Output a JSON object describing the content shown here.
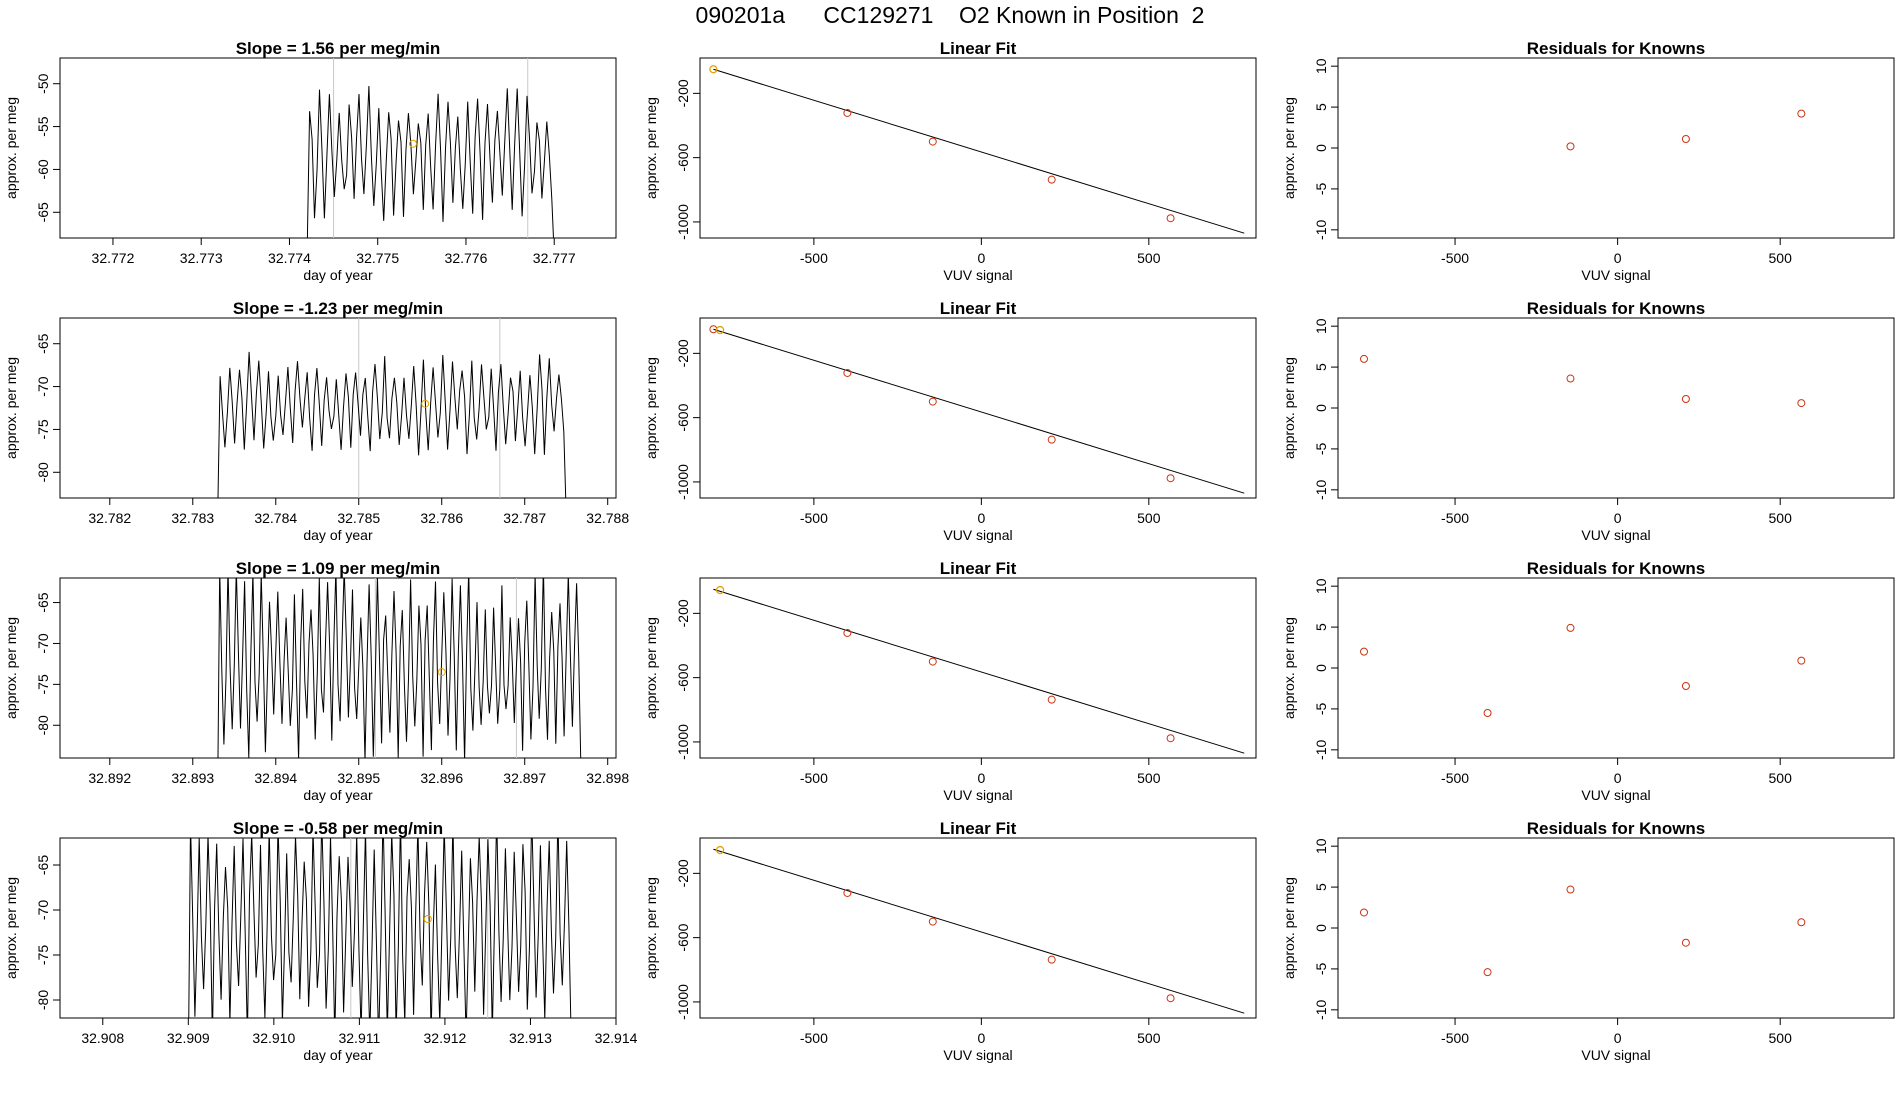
{
  "page": {
    "title": "090201a      CC129271    O2 Known in Position  2"
  },
  "chart_data": [
    {
      "type": "line",
      "panel": "timeseries",
      "row": 0,
      "title": "Slope =  1.56  per meg/min",
      "xlabel": "day of year",
      "ylabel": "approx. per meg",
      "xlim": [
        32.7714,
        32.7777
      ],
      "ylim": [
        -68,
        -47
      ],
      "xticks": [
        {
          "v": 32.772,
          "label": "32.772"
        },
        {
          "v": 32.773,
          "label": "32.773"
        },
        {
          "v": 32.774,
          "label": "32.774"
        },
        {
          "v": 32.775,
          "label": "32.775"
        },
        {
          "v": 32.776,
          "label": "32.776"
        },
        {
          "v": 32.777,
          "label": "32.777"
        }
      ],
      "yticks": [
        {
          "v": -65,
          "label": "-65"
        },
        {
          "v": -60,
          "label": "-60"
        },
        {
          "v": -55,
          "label": "-55"
        },
        {
          "v": -50,
          "label": "-50"
        }
      ],
      "vlines": [
        32.7745,
        32.7767
      ],
      "marker": {
        "x": 32.7754,
        "y": -57.0
      },
      "trace": {
        "x_start": 32.7742,
        "x_end": 32.777,
        "base": -58.5,
        "amp": 7.5,
        "periods": 25,
        "seed": 1,
        "floor": -70,
        "ceil": -40
      },
      "line_color": "#000000",
      "marker_color": "#E69F00"
    },
    {
      "type": "scatter",
      "panel": "linear-fit",
      "row": 0,
      "title": "Linear Fit",
      "xlabel": "VUV signal",
      "ylabel": "approx. per meg",
      "xlim": [
        -840,
        820
      ],
      "ylim": [
        -1100,
        20
      ],
      "xticks": [
        {
          "v": -500,
          "label": "-500"
        },
        {
          "v": 0,
          "label": "0"
        },
        {
          "v": 500,
          "label": "500"
        }
      ],
      "yticks": [
        {
          "v": -1000,
          "label": "-1000"
        },
        {
          "v": -600,
          "label": "-600"
        },
        {
          "v": -200,
          "label": "-200"
        }
      ],
      "x": [
        -400,
        -145,
        210,
        565
      ],
      "y": [
        -322,
        -500,
        -737,
        -977
      ],
      "highlight": {
        "x": -800,
        "y": -50
      },
      "fit_line": {
        "x0": -800,
        "y0": -50,
        "x1": 785,
        "y1": -1070
      },
      "line_color": "#000000",
      "point_color": "#CC3311",
      "highlight_color": "#E69F00"
    },
    {
      "type": "scatter",
      "panel": "residuals",
      "row": 0,
      "title": "Residuals for Knowns",
      "xlabel": "VUV signal",
      "ylabel": "approx. per meg",
      "xlim": [
        -860,
        850
      ],
      "ylim": [
        -11,
        11
      ],
      "xticks": [
        {
          "v": -500,
          "label": "-500"
        },
        {
          "v": 0,
          "label": "0"
        },
        {
          "v": 500,
          "label": "500"
        }
      ],
      "yticks": [
        {
          "v": -10,
          "label": "-10"
        },
        {
          "v": -5,
          "label": "-5"
        },
        {
          "v": 0,
          "label": "0"
        },
        {
          "v": 5,
          "label": "5"
        },
        {
          "v": 10,
          "label": "10"
        }
      ],
      "x": [
        -145,
        210,
        565
      ],
      "y": [
        0.2,
        1.1,
        4.2
      ],
      "point_color": "#CC3311"
    },
    {
      "type": "line",
      "panel": "timeseries",
      "row": 1,
      "title": "Slope =  -1.23  per meg/min",
      "xlabel": "day of year",
      "ylabel": "approx. per meg",
      "xlim": [
        32.7814,
        32.7881
      ],
      "ylim": [
        -83,
        -62
      ],
      "xticks": [
        {
          "v": 32.782,
          "label": "32.782"
        },
        {
          "v": 32.783,
          "label": "32.783"
        },
        {
          "v": 32.784,
          "label": "32.784"
        },
        {
          "v": 32.785,
          "label": "32.785"
        },
        {
          "v": 32.786,
          "label": "32.786"
        },
        {
          "v": 32.787,
          "label": "32.787"
        },
        {
          "v": 32.788,
          "label": "32.788"
        }
      ],
      "yticks": [
        {
          "v": -80,
          "label": "-80"
        },
        {
          "v": -75,
          "label": "-75"
        },
        {
          "v": -70,
          "label": "-70"
        },
        {
          "v": -65,
          "label": "-65"
        }
      ],
      "vlines": [
        32.785,
        32.7867
      ],
      "marker": {
        "x": 32.7858,
        "y": -72.0
      },
      "trace": {
        "x_start": 32.7833,
        "x_end": 32.7875,
        "base": -72.0,
        "amp": 5.5,
        "periods": 36,
        "seed": 2,
        "floor": -85,
        "ceil": -58
      },
      "line_color": "#000000",
      "marker_color": "#E69F00"
    },
    {
      "type": "scatter",
      "panel": "linear-fit",
      "row": 1,
      "title": "Linear Fit",
      "xlabel": "VUV signal",
      "ylabel": "approx. per meg",
      "xlim": [
        -840,
        820
      ],
      "ylim": [
        -1100,
        20
      ],
      "xticks": [
        {
          "v": -500,
          "label": "-500"
        },
        {
          "v": 0,
          "label": "0"
        },
        {
          "v": 500,
          "label": "500"
        }
      ],
      "yticks": [
        {
          "v": -1000,
          "label": "-1000"
        },
        {
          "v": -600,
          "label": "-600"
        },
        {
          "v": -200,
          "label": "-200"
        }
      ],
      "x": [
        -800,
        -400,
        -145,
        210,
        565
      ],
      "y": [
        -50,
        -322,
        -500,
        -737,
        -977
      ],
      "highlight": {
        "x": -780,
        "y": -55
      },
      "fit_line": {
        "x0": -800,
        "y0": -50,
        "x1": 785,
        "y1": -1070
      },
      "line_color": "#000000",
      "point_color": "#CC3311",
      "highlight_color": "#E69F00"
    },
    {
      "type": "scatter",
      "panel": "residuals",
      "row": 1,
      "title": "Residuals for Knowns",
      "xlabel": "VUV signal",
      "ylabel": "approx. per meg",
      "xlim": [
        -860,
        850
      ],
      "ylim": [
        -11,
        11
      ],
      "xticks": [
        {
          "v": -500,
          "label": "-500"
        },
        {
          "v": 0,
          "label": "0"
        },
        {
          "v": 500,
          "label": "500"
        }
      ],
      "yticks": [
        {
          "v": -10,
          "label": "-10"
        },
        {
          "v": -5,
          "label": "-5"
        },
        {
          "v": 0,
          "label": "0"
        },
        {
          "v": 5,
          "label": "5"
        },
        {
          "v": 10,
          "label": "10"
        }
      ],
      "x": [
        -780,
        -145,
        210,
        565
      ],
      "y": [
        6.0,
        3.6,
        1.1,
        0.6
      ],
      "point_color": "#CC3311"
    },
    {
      "type": "line",
      "panel": "timeseries",
      "row": 2,
      "title": "Slope =  1.09  per meg/min",
      "xlabel": "day of year",
      "ylabel": "approx. per meg",
      "xlim": [
        32.8914,
        32.8981
      ],
      "ylim": [
        -84,
        -62
      ],
      "xticks": [
        {
          "v": 32.892,
          "label": "32.892"
        },
        {
          "v": 32.893,
          "label": "32.893"
        },
        {
          "v": 32.894,
          "label": "32.894"
        },
        {
          "v": 32.895,
          "label": "32.895"
        },
        {
          "v": 32.896,
          "label": "32.896"
        },
        {
          "v": 32.897,
          "label": "32.897"
        },
        {
          "v": 32.898,
          "label": "32.898"
        }
      ],
      "yticks": [
        {
          "v": -80,
          "label": "-80"
        },
        {
          "v": -75,
          "label": "-75"
        },
        {
          "v": -70,
          "label": "-70"
        },
        {
          "v": -65,
          "label": "-65"
        }
      ],
      "vlines": [
        32.8952,
        32.8969
      ],
      "marker": {
        "x": 32.896,
        "y": -73.5
      },
      "trace": {
        "x_start": 32.8933,
        "x_end": 32.8977,
        "base": -72.5,
        "amp": 11.0,
        "periods": 44,
        "seed": 3,
        "floor": -88,
        "ceil": -58
      },
      "line_color": "#000000",
      "marker_color": "#E69F00"
    },
    {
      "type": "scatter",
      "panel": "linear-fit",
      "row": 2,
      "title": "Linear Fit",
      "xlabel": "VUV signal",
      "ylabel": "approx. per meg",
      "xlim": [
        -840,
        820
      ],
      "ylim": [
        -1100,
        20
      ],
      "xticks": [
        {
          "v": -500,
          "label": "-500"
        },
        {
          "v": 0,
          "label": "0"
        },
        {
          "v": 500,
          "label": "500"
        }
      ],
      "yticks": [
        {
          "v": -1000,
          "label": "-1000"
        },
        {
          "v": -600,
          "label": "-600"
        },
        {
          "v": -200,
          "label": "-200"
        }
      ],
      "x": [
        -400,
        -145,
        210,
        565
      ],
      "y": [
        -322,
        -500,
        -737,
        -977
      ],
      "highlight": {
        "x": -780,
        "y": -55
      },
      "fit_line": {
        "x0": -800,
        "y0": -50,
        "x1": 785,
        "y1": -1070
      },
      "line_color": "#000000",
      "point_color": "#CC3311",
      "highlight_color": "#E69F00"
    },
    {
      "type": "scatter",
      "panel": "residuals",
      "row": 2,
      "title": "Residuals for Knowns",
      "xlabel": "VUV signal",
      "ylabel": "approx. per meg",
      "xlim": [
        -860,
        850
      ],
      "ylim": [
        -11,
        11
      ],
      "xticks": [
        {
          "v": -500,
          "label": "-500"
        },
        {
          "v": 0,
          "label": "0"
        },
        {
          "v": 500,
          "label": "500"
        }
      ],
      "yticks": [
        {
          "v": -10,
          "label": "-10"
        },
        {
          "v": -5,
          "label": "-5"
        },
        {
          "v": 0,
          "label": "0"
        },
        {
          "v": 5,
          "label": "5"
        },
        {
          "v": 10,
          "label": "10"
        }
      ],
      "x": [
        -780,
        -400,
        -145,
        210,
        565
      ],
      "y": [
        2.0,
        -5.5,
        4.9,
        -2.2,
        0.9
      ],
      "point_color": "#CC3311"
    },
    {
      "type": "line",
      "panel": "timeseries",
      "row": 3,
      "title": "Slope =  -0.58  per meg/min",
      "xlabel": "day of year",
      "ylabel": "approx. per meg",
      "xlim": [
        32.9075,
        32.914
      ],
      "ylim": [
        -82,
        -62
      ],
      "xticks": [
        {
          "v": 32.908,
          "label": "32.908"
        },
        {
          "v": 32.909,
          "label": "32.909"
        },
        {
          "v": 32.91,
          "label": "32.910"
        },
        {
          "v": 32.911,
          "label": "32.911"
        },
        {
          "v": 32.912,
          "label": "32.912"
        },
        {
          "v": 32.913,
          "label": "32.913"
        },
        {
          "v": 32.914,
          "label": "32.914"
        }
      ],
      "yticks": [
        {
          "v": -80,
          "label": "-80"
        },
        {
          "v": -75,
          "label": "-75"
        },
        {
          "v": -70,
          "label": "-70"
        },
        {
          "v": -65,
          "label": "-65"
        }
      ],
      "vlines": [
        32.9109,
        32.9125
      ],
      "marker": {
        "x": 32.9118,
        "y": -71.0
      },
      "trace": {
        "x_start": 32.909,
        "x_end": 32.9135,
        "base": -71.5,
        "amp": 12.0,
        "periods": 44,
        "seed": 4,
        "floor": -88,
        "ceil": -56
      },
      "line_color": "#000000",
      "marker_color": "#E69F00"
    },
    {
      "type": "scatter",
      "panel": "linear-fit",
      "row": 3,
      "title": "Linear Fit",
      "xlabel": "VUV signal",
      "ylabel": "approx. per meg",
      "xlim": [
        -840,
        820
      ],
      "ylim": [
        -1100,
        20
      ],
      "xticks": [
        {
          "v": -500,
          "label": "-500"
        },
        {
          "v": 0,
          "label": "0"
        },
        {
          "v": 500,
          "label": "500"
        }
      ],
      "yticks": [
        {
          "v": -1000,
          "label": "-1000"
        },
        {
          "v": -600,
          "label": "-600"
        },
        {
          "v": -200,
          "label": "-200"
        }
      ],
      "x": [
        -400,
        -145,
        210,
        565
      ],
      "y": [
        -322,
        -500,
        -737,
        -977
      ],
      "highlight": {
        "x": -780,
        "y": -55
      },
      "fit_line": {
        "x0": -800,
        "y0": -50,
        "x1": 785,
        "y1": -1070
      },
      "line_color": "#000000",
      "point_color": "#CC3311",
      "highlight_color": "#E69F00"
    },
    {
      "type": "scatter",
      "panel": "residuals",
      "row": 3,
      "title": "Residuals for Knowns",
      "xlabel": "VUV signal",
      "ylabel": "approx. per meg",
      "xlim": [
        -860,
        850
      ],
      "ylim": [
        -11,
        11
      ],
      "xticks": [
        {
          "v": -500,
          "label": "-500"
        },
        {
          "v": 0,
          "label": "0"
        },
        {
          "v": 500,
          "label": "500"
        }
      ],
      "yticks": [
        {
          "v": -10,
          "label": "-10"
        },
        {
          "v": -5,
          "label": "-5"
        },
        {
          "v": 0,
          "label": "0"
        },
        {
          "v": 5,
          "label": "5"
        },
        {
          "v": 10,
          "label": "10"
        }
      ],
      "x": [
        -780,
        -400,
        -145,
        210,
        565
      ],
      "y": [
        1.9,
        -5.4,
        4.7,
        -1.8,
        0.7
      ],
      "point_color": "#CC3311"
    }
  ]
}
